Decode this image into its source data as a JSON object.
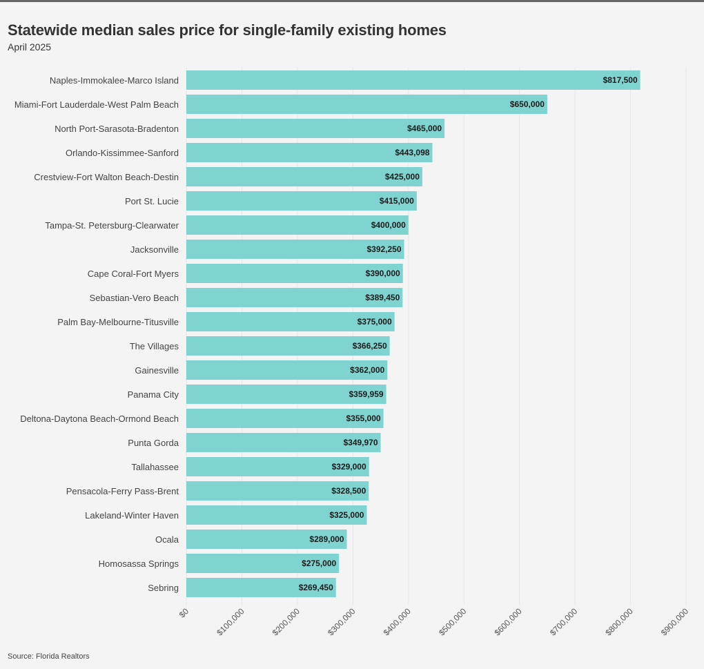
{
  "chart_data": {
    "type": "bar",
    "orientation": "horizontal",
    "title": "Statewide median sales price for single-family existing homes",
    "subtitle": "April 2025",
    "source": "Source: Florida Realtors",
    "xlabel": "",
    "ylabel": "",
    "xlim": [
      0,
      900000
    ],
    "grid": true,
    "bar_color": "#7fd4d2",
    "x_ticks": [
      0,
      100000,
      200000,
      300000,
      400000,
      500000,
      600000,
      700000,
      800000,
      900000
    ],
    "x_tick_labels": [
      "$0",
      "$100,000",
      "$200,000",
      "$300,000",
      "$400,000",
      "$500,000",
      "$600,000",
      "$700,000",
      "$800,000",
      "$900,000"
    ],
    "categories": [
      "Naples-Immokalee-Marco Island",
      "Miami-Fort Lauderdale-West Palm Beach",
      "North Port-Sarasota-Bradenton",
      "Orlando-Kissimmee-Sanford",
      "Crestview-Fort Walton Beach-Destin",
      "Port St. Lucie",
      "Tampa-St. Petersburg-Clearwater",
      "Jacksonville",
      "Cape Coral-Fort Myers",
      "Sebastian-Vero Beach",
      "Palm Bay-Melbourne-Titusville",
      "The Villages",
      "Gainesville",
      "Panama City",
      "Deltona-Daytona Beach-Ormond Beach",
      "Punta Gorda",
      "Tallahassee",
      "Pensacola-Ferry Pass-Brent",
      "Lakeland-Winter Haven",
      "Ocala",
      "Homosassa Springs",
      "Sebring"
    ],
    "values": [
      817500,
      650000,
      465000,
      443098,
      425000,
      415000,
      400000,
      392250,
      390000,
      389450,
      375000,
      366250,
      362000,
      359959,
      355000,
      349970,
      329000,
      328500,
      325000,
      289000,
      275000,
      269450
    ],
    "value_labels": [
      "$817,500",
      "$650,000",
      "$465,000",
      "$443,098",
      "$425,000",
      "$415,000",
      "$400,000",
      "$392,250",
      "$390,000",
      "$389,450",
      "$375,000",
      "$366,250",
      "$362,000",
      "$359,959",
      "$355,000",
      "$349,970",
      "$329,000",
      "$328,500",
      "$325,000",
      "$289,000",
      "$275,000",
      "$269,450"
    ]
  }
}
